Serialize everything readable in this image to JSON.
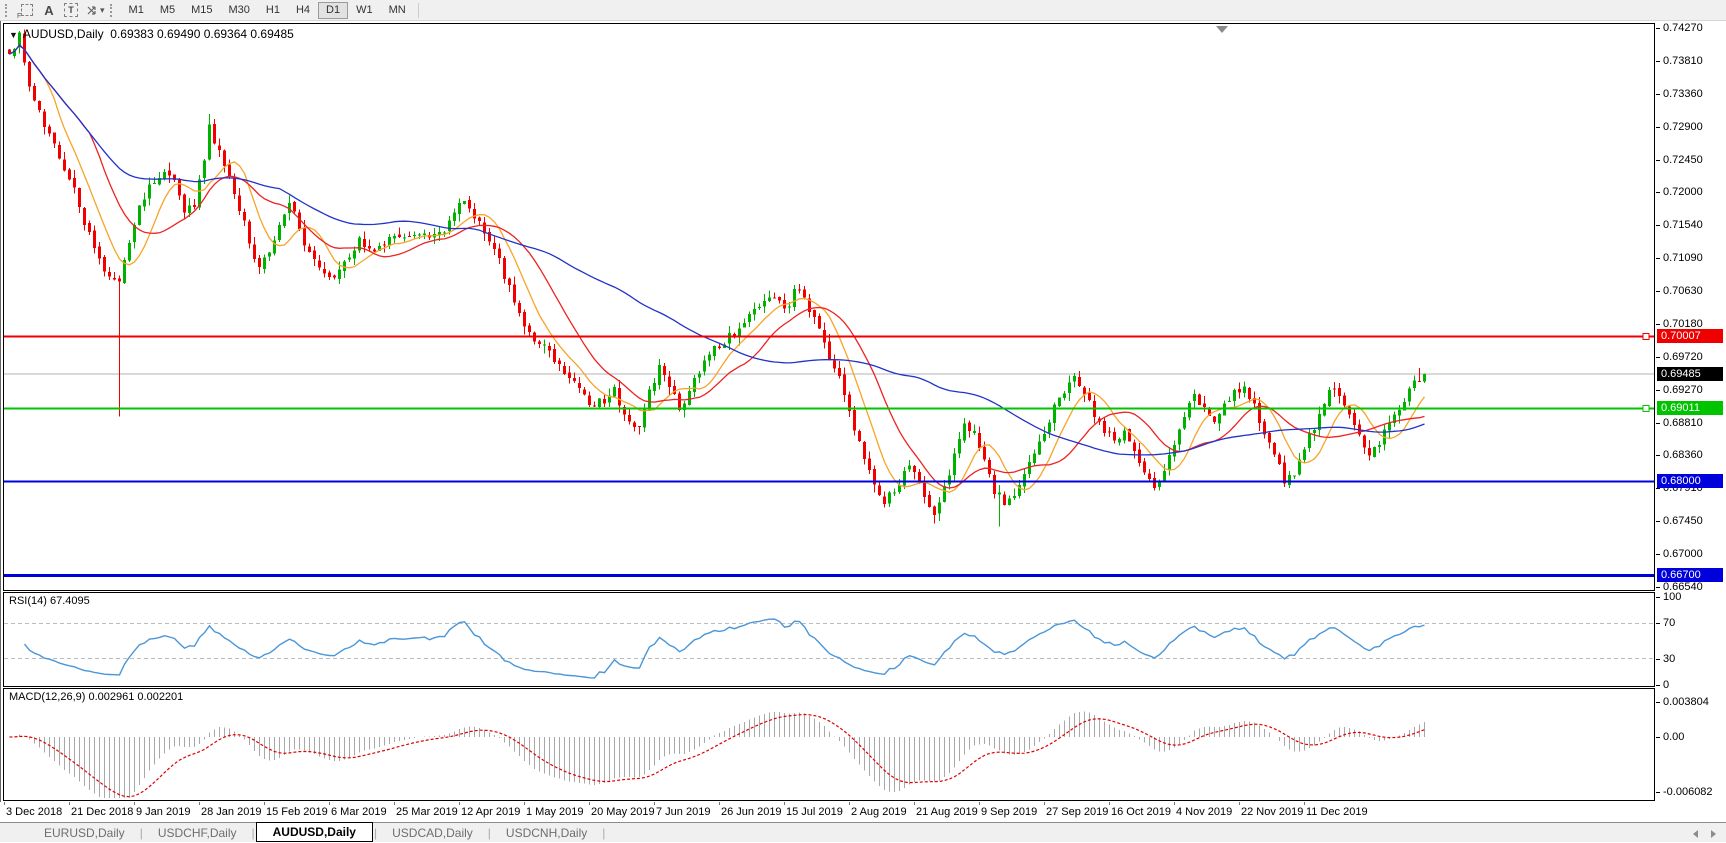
{
  "toolbar": {
    "tools": [
      {
        "name": "crosshair-f",
        "label": "F"
      },
      {
        "name": "arrow",
        "label": "A"
      },
      {
        "name": "text",
        "label": "T"
      }
    ],
    "timeframes": [
      "M1",
      "M5",
      "M15",
      "M30",
      "H1",
      "H4",
      "D1",
      "W1",
      "MN"
    ],
    "active_timeframe": "D1"
  },
  "chart": {
    "dropdown_icon": "▼",
    "symbol_period": "AUDUSD,Daily",
    "ohlc": "0.69383 0.69490 0.69364 0.69485"
  },
  "price_axis": {
    "labels": [
      "0.74270",
      "0.73810",
      "0.73360",
      "0.72900",
      "0.72450",
      "0.72000",
      "0.71540",
      "0.71090",
      "0.70630",
      "0.70180",
      "0.69720",
      "0.69270",
      "0.68810",
      "0.68360",
      "0.67910",
      "0.67450",
      "0.67000",
      "0.66540"
    ]
  },
  "hlines": [
    {
      "value": 0.70007,
      "label": "0.70007",
      "color": "#ee0000",
      "thickness": 2,
      "marker": true
    },
    {
      "value": 0.69011,
      "label": "0.69011",
      "color": "#00c400",
      "thickness": 2,
      "marker": true
    },
    {
      "value": 0.68,
      "label": "0.68000",
      "color": "#0000dd",
      "thickness": 2,
      "marker": false
    },
    {
      "value": 0.667,
      "label": "0.66700",
      "color": "#0000dd",
      "thickness": 3,
      "marker": false
    }
  ],
  "current_price": {
    "value": 0.69485,
    "label": "0.69485",
    "line_color": "#b3b3b3",
    "badge_bg": "#000000"
  },
  "rsi": {
    "label": "RSI(14) 67.4095",
    "line_color": "#4a96d8",
    "level_color": "#bcbcbc",
    "axis": [
      {
        "text": "100",
        "v": 100
      },
      {
        "text": "70",
        "v": 70
      },
      {
        "text": "30",
        "v": 30
      },
      {
        "text": "0",
        "v": 0
      }
    ],
    "levels": [
      70,
      30
    ]
  },
  "macd": {
    "label": "MACD(12,26,9) 0.002961 0.002201",
    "hist_color": "#a8a8a8",
    "signal_color": "#e00000",
    "axis": [
      {
        "text": "0.003804",
        "v": 0.003804
      },
      {
        "text": "0.00",
        "v": 0
      },
      {
        "text": "-0.006082",
        "v": -0.006082
      }
    ]
  },
  "date_axis": [
    "3 Dec 2018",
    "21 Dec 2018",
    "9 Jan 2019",
    "28 Jan 2019",
    "15 Feb 2019",
    "6 Mar 2019",
    "25 Mar 2019",
    "12 Apr 2019",
    "1 May 2019",
    "20 May 2019",
    "7 Jun 2019",
    "26 Jun 2019",
    "15 Jul 2019",
    "2 Aug 2019",
    "21 Aug 2019",
    "9 Sep 2019",
    "27 Sep 2019",
    "16 Oct 2019",
    "4 Nov 2019",
    "22 Nov 2019",
    "11 Dec 2019"
  ],
  "tabs": {
    "separator": "|",
    "items": [
      {
        "label": "EURUSD,Daily",
        "active": false
      },
      {
        "label": "USDCHF,Daily",
        "active": false
      },
      {
        "label": "AUDUSD,Daily",
        "active": true
      },
      {
        "label": "USDCAD,Daily",
        "active": false
      },
      {
        "label": "USDCNH,Daily",
        "active": false
      }
    ]
  },
  "colors": {
    "bull": "#00b200",
    "bear": "#f20000",
    "toolbar_bg": "#f0f0f0",
    "panel_border": "#000000"
  },
  "chart_data": {
    "type": "candlestick",
    "symbol": "AUDUSD",
    "timeframe": "Daily",
    "bars": 284,
    "bar_spacing_px": 5,
    "price_anchors": [
      [
        0,
        0.739
      ],
      [
        2,
        0.742
      ],
      [
        4,
        0.7345
      ],
      [
        6,
        0.731
      ],
      [
        9,
        0.727
      ],
      [
        11,
        0.7235
      ],
      [
        13,
        0.721
      ],
      [
        15,
        0.716
      ],
      [
        17,
        0.712
      ],
      [
        19,
        0.709
      ],
      [
        21,
        0.7085
      ],
      [
        22,
        0.707
      ],
      [
        24,
        0.713
      ],
      [
        26,
        0.7175
      ],
      [
        29,
        0.722
      ],
      [
        31,
        0.723
      ],
      [
        33,
        0.7215
      ],
      [
        35,
        0.717
      ],
      [
        37,
        0.7185
      ],
      [
        39,
        0.724
      ],
      [
        40,
        0.729
      ],
      [
        42,
        0.7255
      ],
      [
        44,
        0.7215
      ],
      [
        46,
        0.718
      ],
      [
        48,
        0.713
      ],
      [
        50,
        0.709
      ],
      [
        52,
        0.712
      ],
      [
        54,
        0.716
      ],
      [
        56,
        0.718
      ],
      [
        58,
        0.7155
      ],
      [
        60,
        0.711
      ],
      [
        63,
        0.7085
      ],
      [
        65,
        0.708
      ],
      [
        67,
        0.7105
      ],
      [
        70,
        0.713
      ],
      [
        73,
        0.712
      ],
      [
        76,
        0.714
      ],
      [
        79,
        0.713
      ],
      [
        82,
        0.7145
      ],
      [
        85,
        0.7135
      ],
      [
        88,
        0.716
      ],
      [
        91,
        0.719
      ],
      [
        93,
        0.7165
      ],
      [
        95,
        0.7145
      ],
      [
        97,
        0.712
      ],
      [
        99,
        0.7085
      ],
      [
        101,
        0.705
      ],
      [
        103,
        0.702
      ],
      [
        105,
        0.7
      ],
      [
        107,
        0.6985
      ],
      [
        109,
        0.697
      ],
      [
        111,
        0.695
      ],
      [
        113,
        0.6935
      ],
      [
        115,
        0.6915
      ],
      [
        117,
        0.69
      ],
      [
        119,
        0.6915
      ],
      [
        121,
        0.6925
      ],
      [
        124,
        0.6885
      ],
      [
        126,
        0.687
      ],
      [
        128,
        0.692
      ],
      [
        130,
        0.6955
      ],
      [
        132,
        0.693
      ],
      [
        134,
        0.69
      ],
      [
        136,
        0.6925
      ],
      [
        138,
        0.6955
      ],
      [
        140,
        0.6975
      ],
      [
        142,
        0.699
      ],
      [
        144,
        0.7
      ],
      [
        146,
        0.7015
      ],
      [
        148,
        0.703
      ],
      [
        150,
        0.7045
      ],
      [
        152,
        0.7055
      ],
      [
        154,
        0.7045
      ],
      [
        156,
        0.704
      ],
      [
        157,
        0.707
      ],
      [
        159,
        0.705
      ],
      [
        161,
        0.702
      ],
      [
        163,
        0.699
      ],
      [
        165,
        0.696
      ],
      [
        167,
        0.692
      ],
      [
        169,
        0.687
      ],
      [
        171,
        0.683
      ],
      [
        173,
        0.6795
      ],
      [
        175,
        0.677
      ],
      [
        177,
        0.679
      ],
      [
        179,
        0.6815
      ],
      [
        181,
        0.682
      ],
      [
        183,
        0.678
      ],
      [
        185,
        0.675
      ],
      [
        187,
        0.679
      ],
      [
        189,
        0.684
      ],
      [
        191,
        0.688
      ],
      [
        193,
        0.6865
      ],
      [
        195,
        0.683
      ],
      [
        197,
        0.679
      ],
      [
        199,
        0.6765
      ],
      [
        201,
        0.6775
      ],
      [
        203,
        0.681
      ],
      [
        205,
        0.684
      ],
      [
        207,
        0.687
      ],
      [
        209,
        0.69
      ],
      [
        211,
        0.6925
      ],
      [
        213,
        0.6945
      ],
      [
        215,
        0.6925
      ],
      [
        217,
        0.6895
      ],
      [
        219,
        0.687
      ],
      [
        221,
        0.6855
      ],
      [
        223,
        0.6865
      ],
      [
        225,
        0.6845
      ],
      [
        227,
        0.6815
      ],
      [
        229,
        0.6785
      ],
      [
        231,
        0.681
      ],
      [
        233,
        0.6855
      ],
      [
        235,
        0.689
      ],
      [
        237,
        0.6915
      ],
      [
        239,
        0.69
      ],
      [
        241,
        0.6885
      ],
      [
        243,
        0.6905
      ],
      [
        245,
        0.6925
      ],
      [
        247,
        0.693
      ],
      [
        249,
        0.6905
      ],
      [
        251,
        0.687
      ],
      [
        253,
        0.6835
      ],
      [
        255,
        0.68
      ],
      [
        257,
        0.6815
      ],
      [
        259,
        0.6845
      ],
      [
        261,
        0.6875
      ],
      [
        263,
        0.691
      ],
      [
        264,
        0.693
      ],
      [
        266,
        0.6915
      ],
      [
        268,
        0.6895
      ],
      [
        270,
        0.6865
      ],
      [
        272,
        0.6835
      ],
      [
        274,
        0.6855
      ],
      [
        276,
        0.688
      ],
      [
        278,
        0.6905
      ],
      [
        280,
        0.6928
      ],
      [
        282,
        0.6942
      ],
      [
        283,
        0.6948
      ]
    ],
    "wick_lows": [
      [
        22,
        0.689
      ],
      [
        185,
        0.6742
      ],
      [
        198,
        0.6738
      ]
    ],
    "wick_highs": [
      [
        2,
        0.7423
      ],
      [
        40,
        0.7308
      ]
    ],
    "last_bar": {
      "o": 0.69383,
      "h": 0.6949,
      "l": 0.69364,
      "c": 0.69485
    },
    "moving_averages": [
      {
        "period": 8,
        "color": "#f7a428"
      },
      {
        "period": 17,
        "color": "#ee2222"
      },
      {
        "period": 55,
        "color": "#2233cc"
      }
    ],
    "horizontal_levels": [
      0.70007,
      0.69011,
      0.68,
      0.667
    ],
    "indicators": {
      "rsi_period": 14,
      "rsi_value": 67.4095,
      "macd_params": [
        12,
        26,
        9
      ],
      "macd_main": 0.002961,
      "macd_signal": 0.002201
    }
  }
}
